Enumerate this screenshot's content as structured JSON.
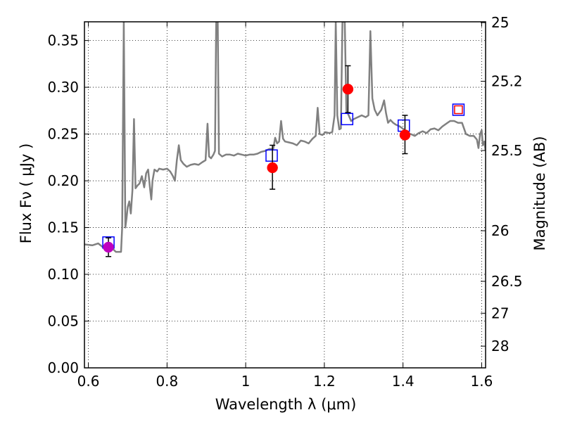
{
  "chart_data": {
    "type": "scatter",
    "title": "",
    "xlabel": "Wavelength  λ (μm)",
    "ylabel": "Flux  Fν  ( μJy )",
    "y2label": "Magnitude (AB)",
    "xlim": [
      0.59,
      1.61
    ],
    "ylim": [
      0.0,
      0.37
    ],
    "grid": true,
    "x_ticks": [
      0.6,
      0.8,
      1.0,
      1.2,
      1.4,
      1.6
    ],
    "x_tick_labels": [
      "0.6",
      "0.8",
      "1",
      "1.2",
      "1.4",
      "1.6"
    ],
    "y_ticks": [
      0.0,
      0.05,
      0.1,
      0.15,
      0.2,
      0.25,
      0.3,
      0.35
    ],
    "y_tick_labels": [
      "0.00",
      "0.05",
      "0.10",
      "0.15",
      "0.20",
      "0.25",
      "0.30",
      "0.35"
    ],
    "y2_ticks": [
      {
        "label": "25",
        "flux": 0.3691
      },
      {
        "label": "25.2",
        "flux": 0.3064
      },
      {
        "label": "25.5",
        "flux": 0.2324
      },
      {
        "label": "26",
        "flux": 0.1466
      },
      {
        "label": "26.5",
        "flux": 0.0925
      },
      {
        "label": "27",
        "flux": 0.0584
      },
      {
        "label": "28",
        "flux": 0.0232
      }
    ],
    "series": [
      {
        "kind": "line",
        "color": "#808080",
        "points": [
          [
            0.59,
            0.132
          ],
          [
            0.61,
            0.131
          ],
          [
            0.625,
            0.133
          ],
          [
            0.64,
            0.128
          ],
          [
            0.655,
            0.13
          ],
          [
            0.67,
            0.124
          ],
          [
            0.683,
            0.124
          ],
          [
            0.686,
            0.15
          ],
          [
            0.69,
            0.37
          ],
          [
            0.694,
            0.15
          ],
          [
            0.697,
            0.16
          ],
          [
            0.7,
            0.172
          ],
          [
            0.704,
            0.178
          ],
          [
            0.708,
            0.165
          ],
          [
            0.712,
            0.19
          ],
          [
            0.716,
            0.266
          ],
          [
            0.72,
            0.192
          ],
          [
            0.725,
            0.195
          ],
          [
            0.73,
            0.197
          ],
          [
            0.736,
            0.205
          ],
          [
            0.742,
            0.193
          ],
          [
            0.747,
            0.208
          ],
          [
            0.752,
            0.212
          ],
          [
            0.757,
            0.191
          ],
          [
            0.76,
            0.18
          ],
          [
            0.763,
            0.2
          ],
          [
            0.768,
            0.212
          ],
          [
            0.775,
            0.21
          ],
          [
            0.78,
            0.213
          ],
          [
            0.79,
            0.212
          ],
          [
            0.8,
            0.213
          ],
          [
            0.808,
            0.21
          ],
          [
            0.815,
            0.205
          ],
          [
            0.82,
            0.2
          ],
          [
            0.825,
            0.222
          ],
          [
            0.83,
            0.238
          ],
          [
            0.835,
            0.222
          ],
          [
            0.842,
            0.218
          ],
          [
            0.85,
            0.215
          ],
          [
            0.86,
            0.217
          ],
          [
            0.87,
            0.218
          ],
          [
            0.88,
            0.217
          ],
          [
            0.89,
            0.22
          ],
          [
            0.898,
            0.222
          ],
          [
            0.903,
            0.261
          ],
          [
            0.907,
            0.226
          ],
          [
            0.912,
            0.224
          ],
          [
            0.918,
            0.228
          ],
          [
            0.922,
            0.232
          ],
          [
            0.925,
            0.37
          ],
          [
            0.929,
            0.37
          ],
          [
            0.932,
            0.229
          ],
          [
            0.94,
            0.226
          ],
          [
            0.95,
            0.228
          ],
          [
            0.96,
            0.228
          ],
          [
            0.97,
            0.227
          ],
          [
            0.98,
            0.229
          ],
          [
            0.99,
            0.228
          ],
          [
            1.0,
            0.227
          ],
          [
            1.01,
            0.228
          ],
          [
            1.02,
            0.228
          ],
          [
            1.03,
            0.229
          ],
          [
            1.04,
            0.231
          ],
          [
            1.05,
            0.232
          ],
          [
            1.06,
            0.234
          ],
          [
            1.07,
            0.234
          ],
          [
            1.075,
            0.246
          ],
          [
            1.08,
            0.24
          ],
          [
            1.085,
            0.242
          ],
          [
            1.09,
            0.264
          ],
          [
            1.095,
            0.245
          ],
          [
            1.1,
            0.242
          ],
          [
            1.11,
            0.241
          ],
          [
            1.12,
            0.24
          ],
          [
            1.13,
            0.238
          ],
          [
            1.14,
            0.243
          ],
          [
            1.15,
            0.242
          ],
          [
            1.16,
            0.24
          ],
          [
            1.17,
            0.245
          ],
          [
            1.178,
            0.248
          ],
          [
            1.183,
            0.278
          ],
          [
            1.188,
            0.25
          ],
          [
            1.195,
            0.249
          ],
          [
            1.203,
            0.252
          ],
          [
            1.212,
            0.251
          ],
          [
            1.22,
            0.252
          ],
          [
            1.226,
            0.27
          ],
          [
            1.229,
            0.37
          ],
          [
            1.233,
            0.27
          ],
          [
            1.238,
            0.255
          ],
          [
            1.242,
            0.256
          ],
          [
            1.246,
            0.37
          ],
          [
            1.252,
            0.37
          ],
          [
            1.256,
            0.275
          ],
          [
            1.262,
            0.27
          ],
          [
            1.268,
            0.264
          ],
          [
            1.275,
            0.266
          ],
          [
            1.285,
            0.268
          ],
          [
            1.295,
            0.27
          ],
          [
            1.305,
            0.268
          ],
          [
            1.312,
            0.27
          ],
          [
            1.317,
            0.36
          ],
          [
            1.322,
            0.288
          ],
          [
            1.328,
            0.276
          ],
          [
            1.335,
            0.27
          ],
          [
            1.345,
            0.276
          ],
          [
            1.352,
            0.286
          ],
          [
            1.357,
            0.272
          ],
          [
            1.362,
            0.262
          ],
          [
            1.368,
            0.265
          ],
          [
            1.375,
            0.262
          ],
          [
            1.382,
            0.26
          ],
          [
            1.392,
            0.258
          ],
          [
            1.402,
            0.255
          ],
          [
            1.41,
            0.25
          ],
          [
            1.42,
            0.25
          ],
          [
            1.43,
            0.248
          ],
          [
            1.44,
            0.251
          ],
          [
            1.45,
            0.253
          ],
          [
            1.46,
            0.251
          ],
          [
            1.47,
            0.255
          ],
          [
            1.48,
            0.256
          ],
          [
            1.49,
            0.254
          ],
          [
            1.5,
            0.258
          ],
          [
            1.51,
            0.261
          ],
          [
            1.52,
            0.264
          ],
          [
            1.53,
            0.264
          ],
          [
            1.54,
            0.262
          ],
          [
            1.55,
            0.262
          ],
          [
            1.56,
            0.25
          ],
          [
            1.57,
            0.248
          ],
          [
            1.58,
            0.248
          ],
          [
            1.588,
            0.244
          ],
          [
            1.592,
            0.235
          ],
          [
            1.596,
            0.25
          ],
          [
            1.6,
            0.254
          ],
          [
            1.603,
            0.238
          ],
          [
            1.607,
            0.242
          ],
          [
            1.61,
            0.232
          ]
        ]
      },
      {
        "kind": "errorbar_points",
        "marker": "circle",
        "points": [
          {
            "x": 0.651,
            "y": 0.129,
            "yerr_low": 0.01,
            "yerr_high": 0.01,
            "color": "#bf00bf"
          },
          {
            "x": 1.068,
            "y": 0.214,
            "yerr_low": 0.023,
            "yerr_high": 0.024,
            "color": "#ff0000"
          },
          {
            "x": 1.26,
            "y": 0.298,
            "yerr_low": 0.025,
            "yerr_high": 0.025,
            "color": "#ff0000"
          },
          {
            "x": 1.405,
            "y": 0.249,
            "yerr_low": 0.02,
            "yerr_high": 0.021,
            "color": "#ff0000"
          }
        ]
      },
      {
        "kind": "scatter",
        "marker": "open-square",
        "color": "#0000ff",
        "points": [
          {
            "x": 0.651,
            "y": 0.134
          },
          {
            "x": 1.066,
            "y": 0.227
          },
          {
            "x": 1.258,
            "y": 0.266
          },
          {
            "x": 1.402,
            "y": 0.259
          },
          {
            "x": 1.541,
            "y": 0.276
          }
        ]
      },
      {
        "kind": "scatter",
        "marker": "open-square-small",
        "color": "#ff0000",
        "points": [
          {
            "x": 1.541,
            "y": 0.276
          }
        ]
      }
    ]
  }
}
